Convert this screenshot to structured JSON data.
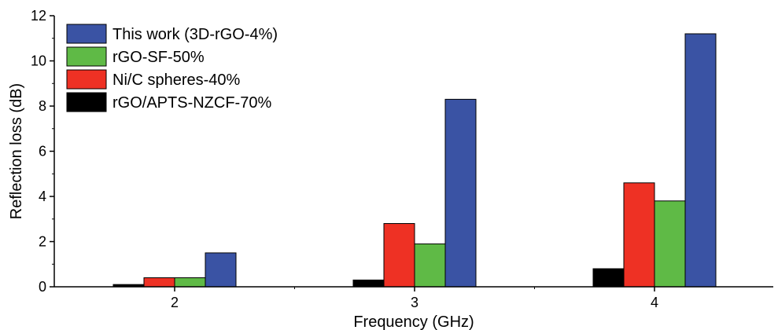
{
  "chart_data": {
    "type": "bar",
    "title": "",
    "xlabel": "Frequency (GHz)",
    "ylabel": "Reflection loss (dB)",
    "categories": [
      "2",
      "3",
      "4"
    ],
    "ylim": [
      0,
      12
    ],
    "yticks": [
      "0",
      "2",
      "4",
      "6",
      "8",
      "10",
      "12"
    ],
    "legend_position": "top-left",
    "grid": false,
    "series": [
      {
        "name": "rGO/APTS-NZCF-70%",
        "color": "#000000",
        "values": [
          0.1,
          0.3,
          0.8
        ]
      },
      {
        "name": "Ni/C spheres-40%",
        "color": "#ee3124",
        "values": [
          0.4,
          2.8,
          4.6
        ]
      },
      {
        "name": "rGO-SF-50%",
        "color": "#5fba46",
        "values": [
          0.4,
          1.9,
          3.8
        ]
      },
      {
        "name": "This work (3D-rGO-4%)",
        "color": "#3a53a4",
        "values": [
          1.5,
          8.3,
          11.2
        ]
      }
    ],
    "legend_order": [
      3,
      2,
      1,
      0
    ]
  }
}
